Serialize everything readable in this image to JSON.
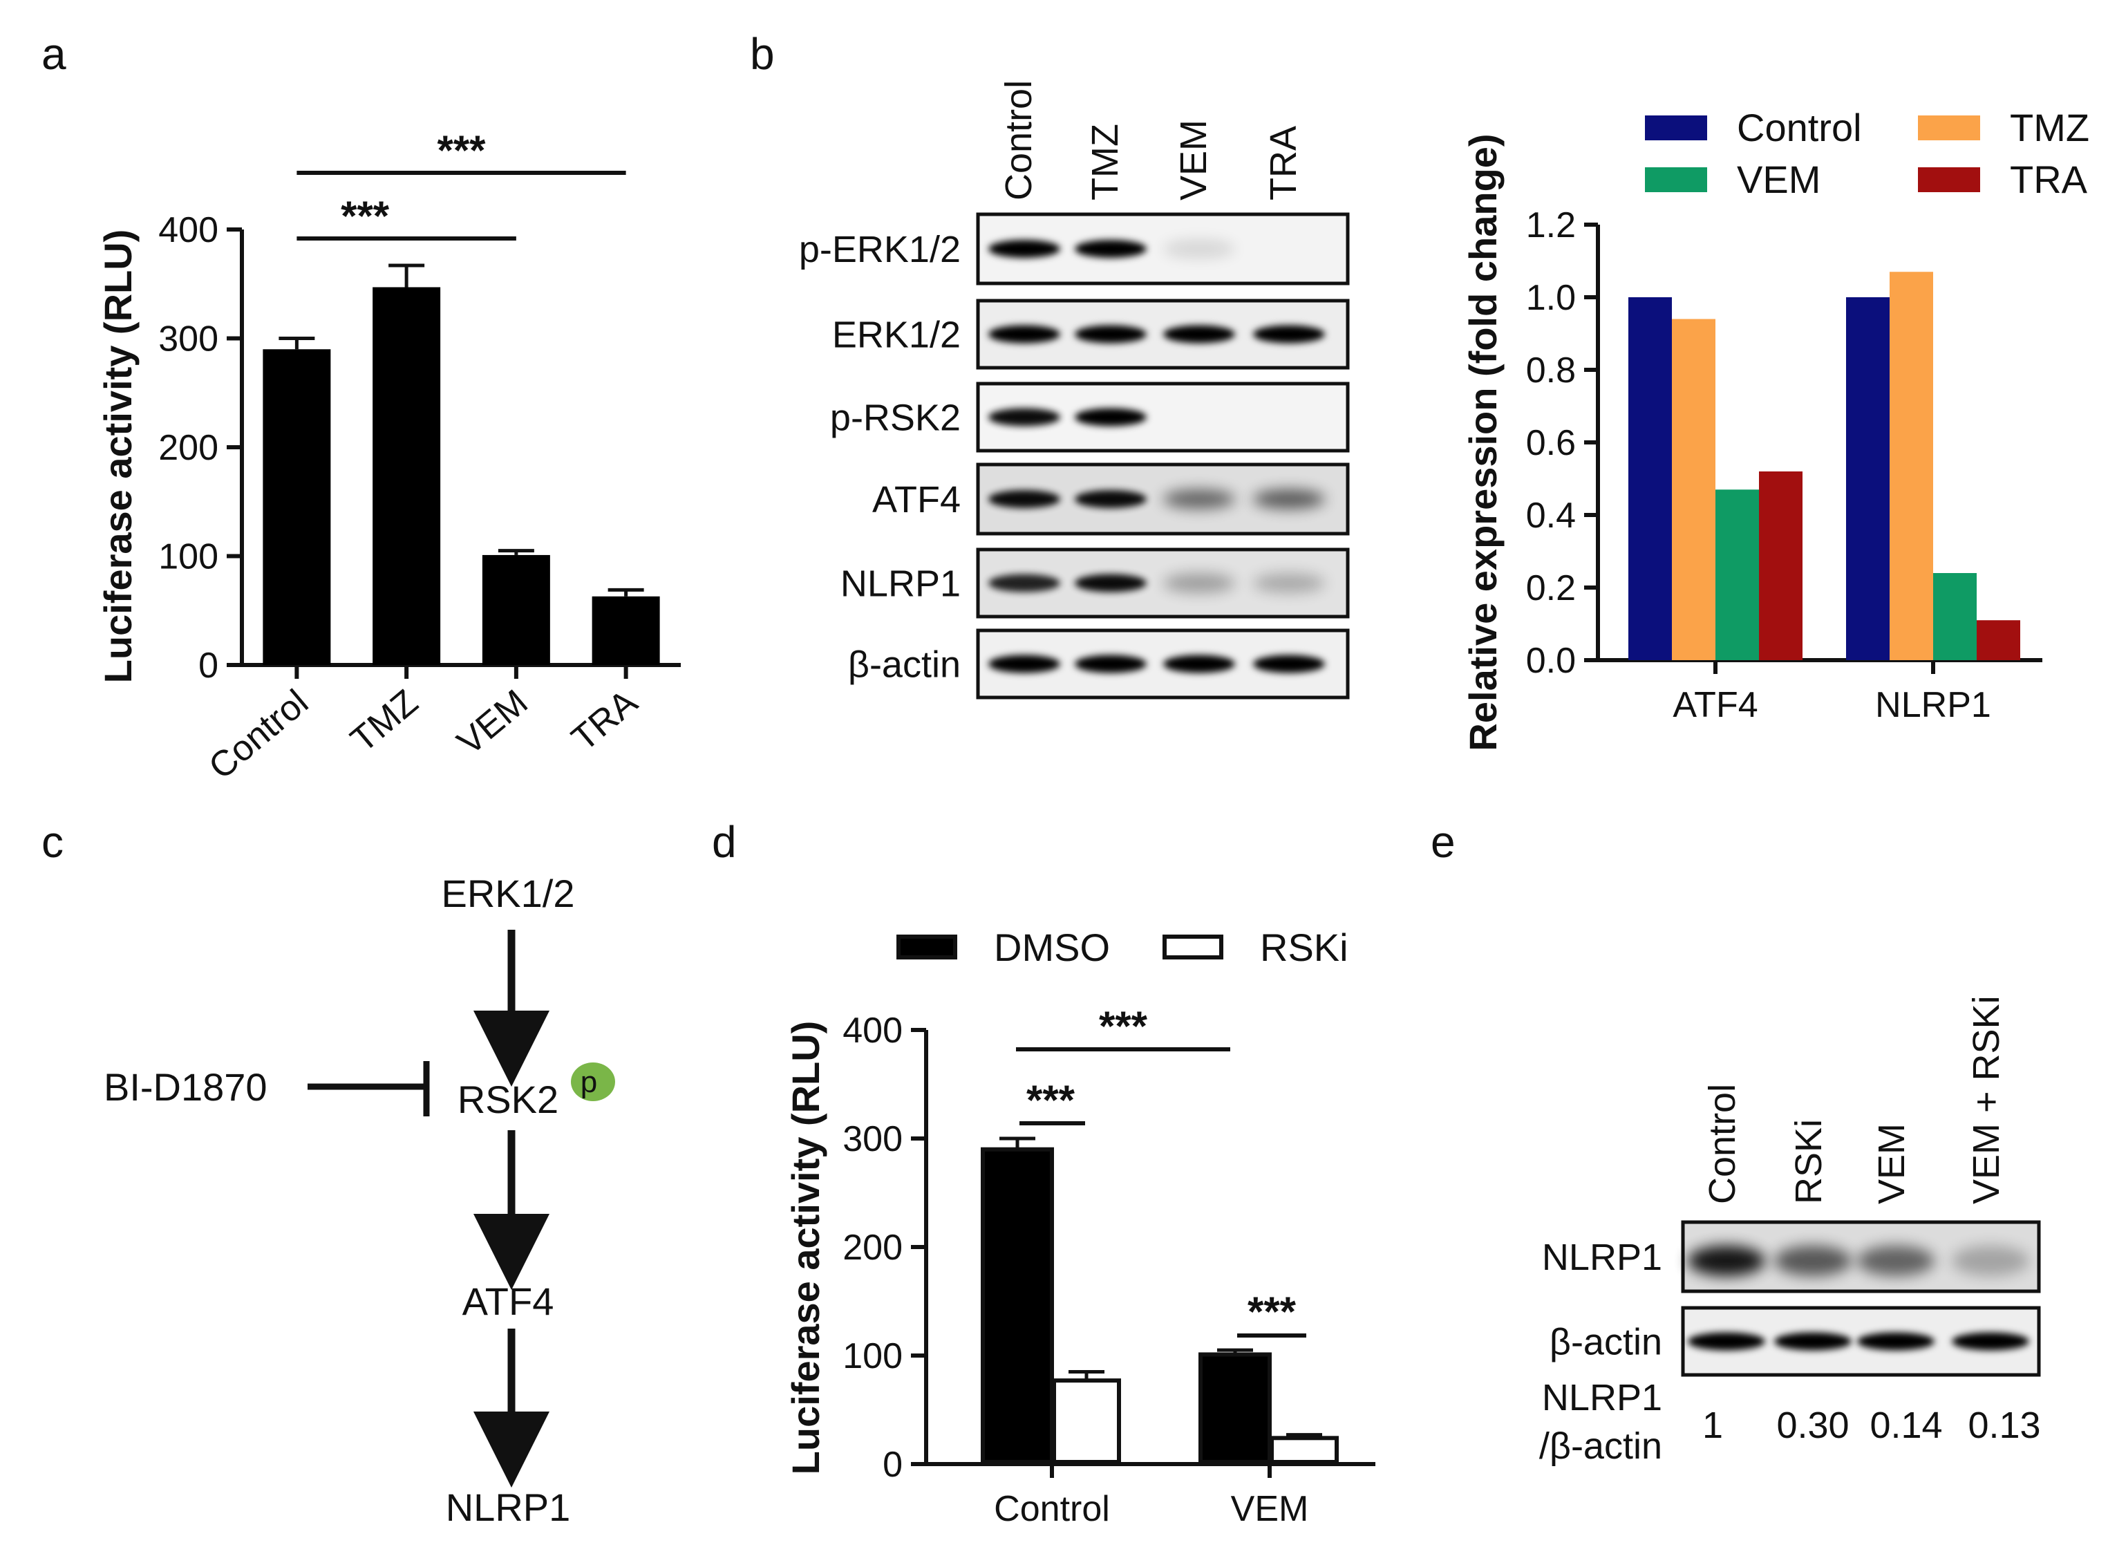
{
  "panels": {
    "a": "a",
    "b": "b",
    "c": "c",
    "d": "d",
    "e": "e"
  },
  "chart_data": [
    {
      "id": "a",
      "type": "bar",
      "title": "",
      "xlabel": "",
      "ylabel": "Luciferase activity (RLU)",
      "ylim": [
        0,
        400
      ],
      "yticks": [
        0,
        100,
        200,
        300,
        400
      ],
      "categories": [
        "Control",
        "TMZ",
        "VEM",
        "TRA"
      ],
      "values": [
        290,
        347,
        101,
        63
      ],
      "errors": [
        10,
        20,
        4,
        6
      ],
      "bar_color": "#000000",
      "significance": [
        {
          "label": "***",
          "from": "Control",
          "to": "VEM"
        },
        {
          "label": "***",
          "from": "Control",
          "to": "TRA"
        }
      ]
    },
    {
      "id": "b-quant",
      "type": "bar",
      "xlabel": "",
      "ylabel": "Relative expression (fold change)",
      "ylim": [
        0,
        1.2
      ],
      "yticks": [
        "0.0",
        "0.2",
        "0.4",
        "0.6",
        "0.8",
        "1.0",
        "1.2"
      ],
      "categories": [
        "ATF4",
        "NLRP1"
      ],
      "series": [
        {
          "name": "Control",
          "color": "#0b0f7c",
          "values": [
            1.0,
            1.0
          ]
        },
        {
          "name": "TMZ",
          "color": "#fba349",
          "values": [
            0.94,
            1.07
          ]
        },
        {
          "name": "VEM",
          "color": "#0f9b64",
          "values": [
            0.47,
            0.24
          ]
        },
        {
          "name": "TRA",
          "color": "#a20f0f",
          "values": [
            0.52,
            0.11
          ]
        }
      ],
      "legend_placement": "top"
    },
    {
      "id": "d",
      "type": "bar",
      "xlabel": "",
      "ylabel": "Luciferase activity (RLU)",
      "ylim": [
        0,
        400
      ],
      "yticks": [
        0,
        100,
        200,
        300,
        400
      ],
      "categories": [
        "Control",
        "VEM"
      ],
      "series": [
        {
          "name": "DMSO",
          "fill": "#000000",
          "values": [
            290,
            101
          ],
          "errors": [
            10,
            4
          ]
        },
        {
          "name": "RSKi",
          "fill": "#ffffff",
          "values": [
            77,
            24
          ],
          "errors": [
            8,
            3
          ]
        }
      ],
      "significance": [
        {
          "label": "***",
          "type": "within",
          "group": "Control"
        },
        {
          "label": "***",
          "type": "between",
          "from": "Control",
          "to": "VEM"
        },
        {
          "label": "***",
          "type": "within",
          "group": "VEM"
        }
      ],
      "legend_placement": "top"
    }
  ],
  "blot_b": {
    "lanes": [
      "Control",
      "TMZ",
      "VEM",
      "TRA"
    ],
    "rows": [
      "p-ERK1/2",
      "ERK1/2",
      "p-RSK2",
      "ATF4",
      "NLRP1",
      "β-actin"
    ]
  },
  "pathway": {
    "nodes": [
      "ERK1/2",
      "RSK2",
      "ATF4",
      "NLRP1"
    ],
    "inhibitor": "BI-D1870",
    "phospho": "p"
  },
  "blot_e": {
    "lanes": [
      "Control",
      "RSKi",
      "VEM",
      "VEM + RSKi"
    ],
    "rows": [
      "NLRP1",
      "β-actin"
    ],
    "ratio_label_line1": "NLRP1",
    "ratio_label_line2": "/β-actin",
    "ratios": [
      "1",
      "0.30",
      "0.14",
      "0.13"
    ]
  }
}
